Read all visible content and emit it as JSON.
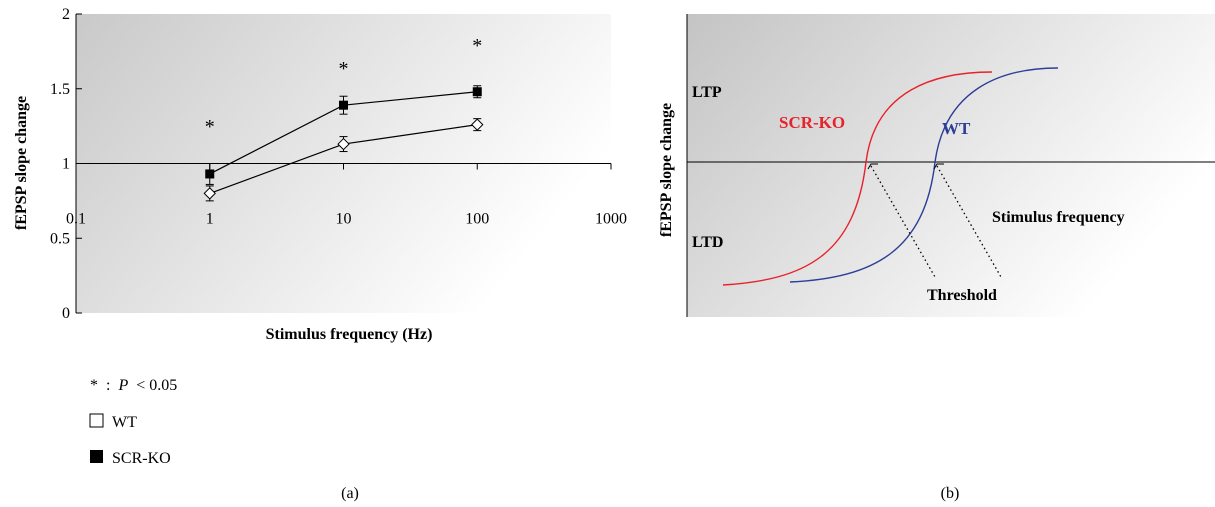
{
  "panel_a_label": "(a)",
  "panel_b_label": "(b)",
  "legend": {
    "significance_star": "*",
    "significance_sep": ":",
    "significance_p": "P",
    "significance_rest": "< 0.05",
    "wt_label": "WT",
    "ko_label": "SCR-KO"
  },
  "chart_data": [
    {
      "type": "line",
      "xscale": "log",
      "xlabel": "Stimulus frequency (Hz)",
      "ylabel": "fEPSP slope change",
      "xlim": [
        0.1,
        1000
      ],
      "ylim": [
        0,
        2
      ],
      "x_ticks": [
        "0.1",
        "1",
        "10",
        "100",
        "1000"
      ],
      "y_ticks": [
        "0",
        "0.5",
        "1",
        "1.5",
        "2"
      ],
      "baseline": 1,
      "grid": false,
      "series": [
        {
          "name": "SCR-KO",
          "marker": "filled-square",
          "x": [
            1,
            10,
            100
          ],
          "y": [
            0.93,
            1.39,
            1.48
          ],
          "err": [
            0.07,
            0.06,
            0.04
          ]
        },
        {
          "name": "WT",
          "marker": "open-diamond",
          "x": [
            1,
            10,
            100
          ],
          "y": [
            0.8,
            1.13,
            1.26
          ],
          "err": [
            0.05,
            0.05,
            0.04
          ]
        }
      ],
      "significance": [
        {
          "x": 1,
          "label": "*"
        },
        {
          "x": 10,
          "label": "*"
        },
        {
          "x": 100,
          "label": "*"
        }
      ]
    },
    {
      "type": "line",
      "schematic": true,
      "ylabel": "fEPSP slope change",
      "xlabel": "Stimulus frequency",
      "region_labels": [
        "LTP",
        "LTD"
      ],
      "threshold_label": "Threshold",
      "series": [
        {
          "name": "SCR-KO",
          "color": "#e8222a"
        },
        {
          "name": "WT",
          "color": "#2b3f96"
        }
      ]
    }
  ]
}
